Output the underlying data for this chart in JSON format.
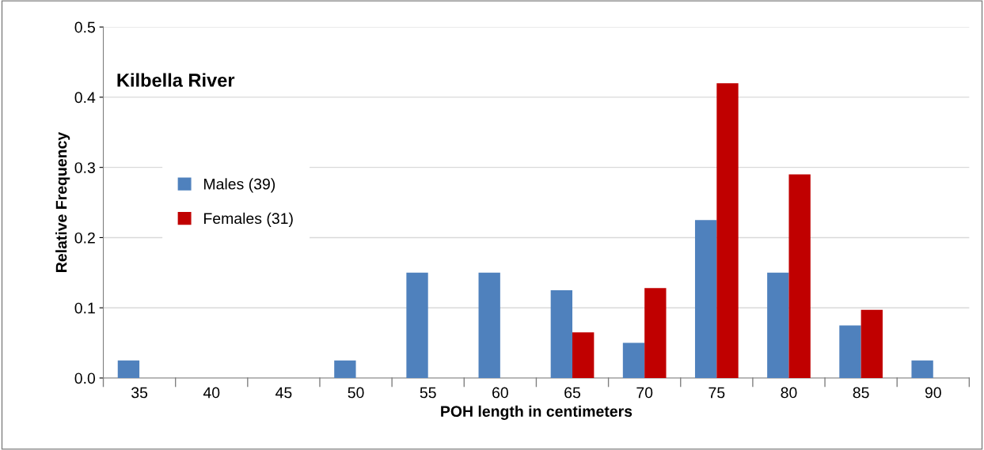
{
  "chart_data": {
    "type": "bar",
    "xlabel": "POH length in centimeters",
    "ylabel": "Relative Frequency",
    "annotations": [
      "Kilbella River"
    ],
    "categories": [
      "35",
      "40",
      "45",
      "50",
      "55",
      "60",
      "65",
      "70",
      "75",
      "80",
      "85",
      "90"
    ],
    "series": [
      {
        "name": "Males (39)",
        "color": "#4f81bd",
        "values": [
          0.025,
          0,
          0,
          0.025,
          0.15,
          0.15,
          0.125,
          0.05,
          0.225,
          0.15,
          0.075,
          0.025
        ]
      },
      {
        "name": "Females (31)",
        "color": "#c00000",
        "values": [
          0,
          0,
          0,
          0,
          0,
          0,
          0.065,
          0.128,
          0.42,
          0.29,
          0.097,
          0
        ]
      }
    ],
    "ylim": [
      0,
      0.5
    ],
    "yticks": [
      {
        "value": 0,
        "label": "0.0"
      },
      0.1,
      0.2,
      0.3,
      0.4,
      0.5
    ],
    "grid": "y",
    "legend": "center left"
  }
}
